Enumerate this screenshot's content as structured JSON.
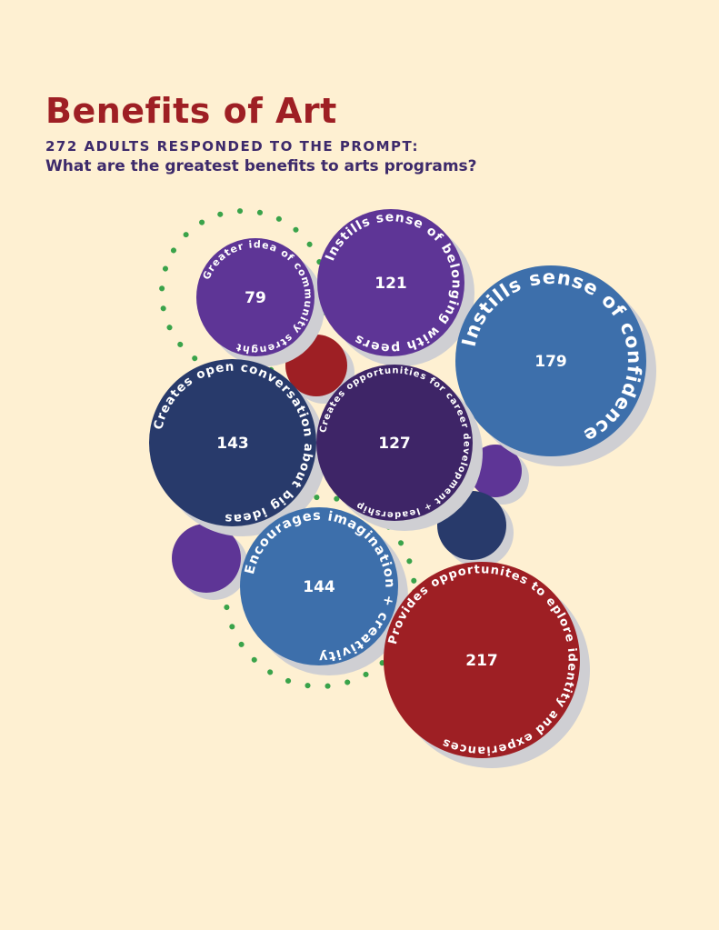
{
  "title": "Benefits of Art",
  "subtitle": "272 adults responded to the prompt:",
  "question": "What are the greatest benefits to arts programs?",
  "colors": {
    "background": "#fef0d2",
    "title": "#9e1f24",
    "subtitle": "#3d2a6b",
    "purple": "#5e3596",
    "dark_purple": "#3e2567",
    "blue": "#3d6fab",
    "navy": "#283a6b",
    "red": "#9e1f24",
    "green_dots": "#3aa34a",
    "shadow": "#cfcfd3"
  },
  "chart_data": {
    "type": "bubble",
    "items": [
      {
        "label": "Greater idea of community strenght",
        "value": 79,
        "color": "#5e3596"
      },
      {
        "label": "Instills sense of belonging with peers",
        "value": 121,
        "color": "#5e3596"
      },
      {
        "label": "Instills sense of confidence",
        "value": 179,
        "color": "#3d6fab"
      },
      {
        "label": "Creates open conversation about big ideas",
        "value": 143,
        "color": "#283a6b"
      },
      {
        "label": "Creates opportunities for career development + leadership",
        "value": 127,
        "color": "#3e2567"
      },
      {
        "label": "Encourages imagination + creativity",
        "value": 144,
        "color": "#3d6fab"
      },
      {
        "label": "Provides opportunites to eplore identity and experiances",
        "value": 217,
        "color": "#9e1f24"
      }
    ]
  }
}
